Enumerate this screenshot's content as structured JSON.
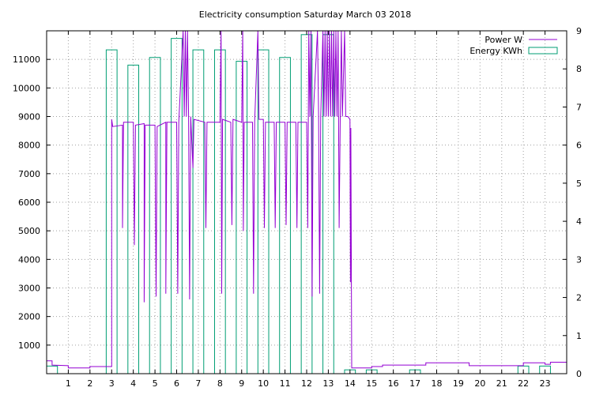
{
  "chart_data": {
    "type": "bar",
    "title": "Electricity consumption Saturday March 03 2018",
    "xlabel": "",
    "ylabel": "",
    "y2label": "",
    "grid": true,
    "legend_position": "top-right",
    "x_ticks": [
      "1",
      "2",
      "3",
      "4",
      "5",
      "6",
      "7",
      "8",
      "9",
      "10",
      "11",
      "12",
      "13",
      "14",
      "15",
      "16",
      "17",
      "18",
      "19",
      "20",
      "21",
      "22",
      "23"
    ],
    "xlim": [
      0,
      24
    ],
    "y_ticks": [
      "1000",
      "2000",
      "3000",
      "4000",
      "5000",
      "6000",
      "7000",
      "8000",
      "9000",
      "10000",
      "11000"
    ],
    "ylim": [
      0,
      12000
    ],
    "y2_ticks": [
      "0",
      "1",
      "2",
      "3",
      "4",
      "5",
      "6",
      "7",
      "8",
      "9"
    ],
    "y2lim": [
      0,
      9
    ],
    "colors": {
      "power": "#9400d3",
      "energy": "#009e73"
    },
    "series": [
      {
        "name": "Energy KWh",
        "type": "bar",
        "axis": "y2",
        "bar_width": 0.5,
        "points": [
          [
            0,
            0.2
          ],
          [
            2.75,
            8.5
          ],
          [
            3.75,
            8.1
          ],
          [
            4.75,
            8.3
          ],
          [
            5.75,
            8.8
          ],
          [
            6.75,
            8.5
          ],
          [
            7.75,
            8.5
          ],
          [
            8.75,
            8.2
          ],
          [
            9.75,
            8.5
          ],
          [
            10.75,
            8.3
          ],
          [
            11.75,
            8.9
          ],
          [
            12.75,
            8.9
          ],
          [
            13.75,
            0.1
          ],
          [
            14.75,
            0.1
          ],
          [
            16.75,
            0.1
          ],
          [
            21.75,
            0.2
          ],
          [
            22.75,
            0.2
          ]
        ]
      },
      {
        "name": "Power W",
        "type": "line",
        "axis": "y",
        "points": [
          [
            0.0,
            450
          ],
          [
            0.25,
            450
          ],
          [
            0.25,
            300
          ],
          [
            1.0,
            280
          ],
          [
            1.0,
            200
          ],
          [
            2.0,
            200
          ],
          [
            2.0,
            250
          ],
          [
            3.0,
            250
          ],
          [
            3.0,
            8900
          ],
          [
            3.05,
            8650
          ],
          [
            3.5,
            8700
          ],
          [
            3.5,
            5100
          ],
          [
            3.55,
            8800
          ],
          [
            4.0,
            8800
          ],
          [
            4.05,
            4500
          ],
          [
            4.1,
            8700
          ],
          [
            4.5,
            8750
          ],
          [
            4.5,
            2500
          ],
          [
            4.55,
            8700
          ],
          [
            5.0,
            8700
          ],
          [
            5.05,
            2700
          ],
          [
            5.1,
            8650
          ],
          [
            5.5,
            8800
          ],
          [
            5.5,
            2800
          ],
          [
            5.55,
            8800
          ],
          [
            6.0,
            8800
          ],
          [
            6.05,
            2800
          ],
          [
            6.1,
            8800
          ],
          [
            6.3,
            12000
          ],
          [
            6.35,
            9000
          ],
          [
            6.4,
            12000
          ],
          [
            6.45,
            9000
          ],
          [
            6.5,
            12000
          ],
          [
            6.55,
            9000
          ],
          [
            6.6,
            2600
          ],
          [
            6.65,
            9000
          ],
          [
            6.75,
            7200
          ],
          [
            6.8,
            8900
          ],
          [
            7.3,
            8800
          ],
          [
            7.35,
            5100
          ],
          [
            7.4,
            8800
          ],
          [
            8.0,
            8800
          ],
          [
            8.05,
            12000
          ],
          [
            8.08,
            2800
          ],
          [
            8.12,
            8900
          ],
          [
            8.5,
            8800
          ],
          [
            8.55,
            5200
          ],
          [
            8.6,
            8900
          ],
          [
            9.0,
            8800
          ],
          [
            9.05,
            12000
          ],
          [
            9.08,
            5000
          ],
          [
            9.12,
            8800
          ],
          [
            9.5,
            8800
          ],
          [
            9.55,
            2800
          ],
          [
            9.6,
            8800
          ],
          [
            9.75,
            12000
          ],
          [
            9.8,
            8900
          ],
          [
            10.0,
            8900
          ],
          [
            10.05,
            5100
          ],
          [
            10.1,
            8800
          ],
          [
            10.5,
            8800
          ],
          [
            10.55,
            5100
          ],
          [
            10.6,
            8800
          ],
          [
            11.0,
            8800
          ],
          [
            11.05,
            5200
          ],
          [
            11.1,
            8800
          ],
          [
            11.5,
            8800
          ],
          [
            11.55,
            5100
          ],
          [
            11.6,
            8800
          ],
          [
            12.0,
            8800
          ],
          [
            12.05,
            5100
          ],
          [
            12.1,
            12000
          ],
          [
            12.15,
            9000
          ],
          [
            12.2,
            12000
          ],
          [
            12.25,
            2700
          ],
          [
            12.3,
            9000
          ],
          [
            12.5,
            12000
          ],
          [
            12.55,
            9000
          ],
          [
            12.6,
            2800
          ],
          [
            12.65,
            9000
          ],
          [
            12.75,
            12000
          ],
          [
            12.8,
            9000
          ],
          [
            12.85,
            12000
          ],
          [
            12.9,
            9000
          ],
          [
            12.95,
            12000
          ],
          [
            13.0,
            9000
          ],
          [
            13.05,
            12000
          ],
          [
            13.1,
            9000
          ],
          [
            13.15,
            12000
          ],
          [
            13.2,
            9000
          ],
          [
            13.25,
            12000
          ],
          [
            13.3,
            9000
          ],
          [
            13.35,
            12000
          ],
          [
            13.4,
            9000
          ],
          [
            13.45,
            12000
          ],
          [
            13.5,
            5100
          ],
          [
            13.55,
            9000
          ],
          [
            13.6,
            12000
          ],
          [
            13.65,
            9000
          ],
          [
            13.75,
            12000
          ],
          [
            13.8,
            9000
          ],
          [
            13.9,
            9000
          ],
          [
            14.0,
            8900
          ],
          [
            14.02,
            3200
          ],
          [
            14.04,
            8600
          ],
          [
            14.08,
            200
          ],
          [
            15.0,
            200
          ],
          [
            15.0,
            250
          ],
          [
            15.5,
            250
          ],
          [
            15.5,
            300
          ],
          [
            17.5,
            300
          ],
          [
            17.5,
            380
          ],
          [
            19.5,
            380
          ],
          [
            19.5,
            280
          ],
          [
            22.0,
            280
          ],
          [
            22.0,
            380
          ],
          [
            23.0,
            380
          ],
          [
            23.0,
            330
          ],
          [
            23.25,
            330
          ],
          [
            23.25,
            400
          ],
          [
            24.0,
            400
          ]
        ]
      }
    ]
  }
}
